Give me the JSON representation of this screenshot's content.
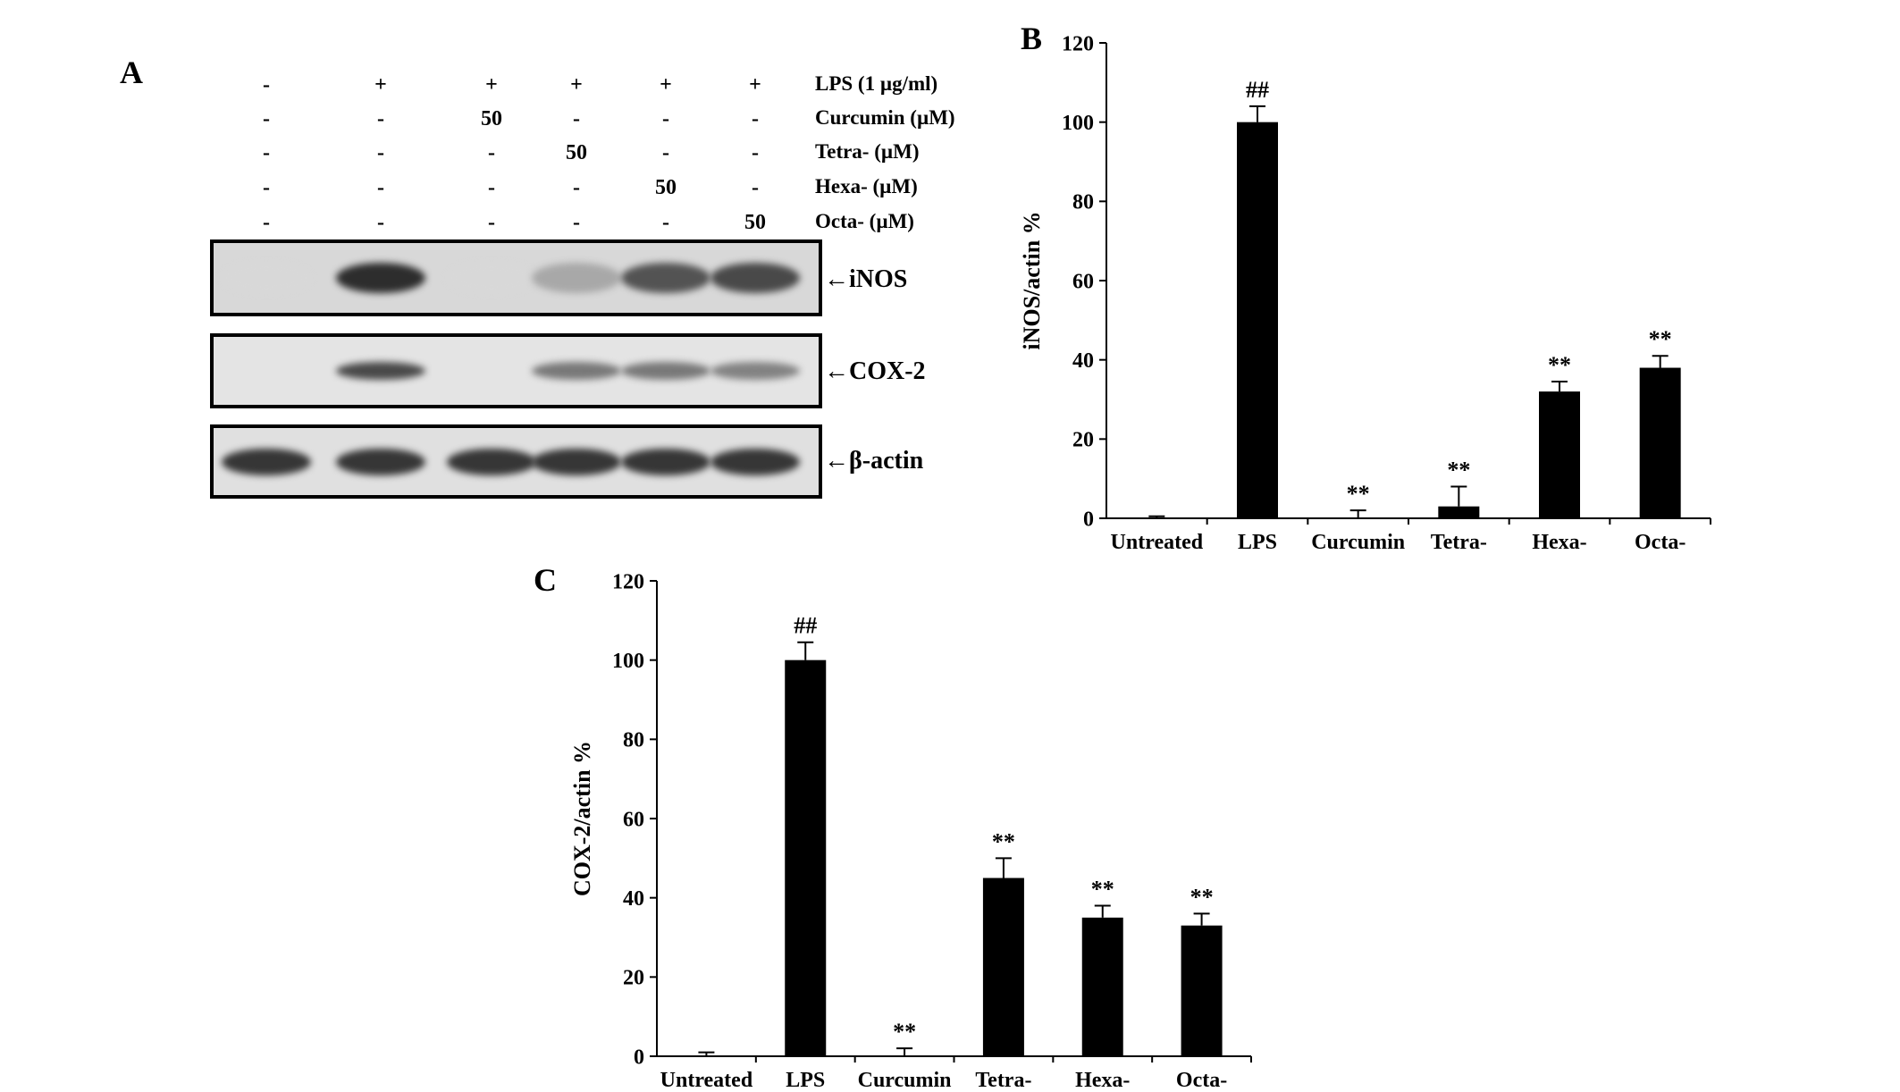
{
  "panel_a": {
    "letter": "A",
    "treatments": [
      {
        "label": "LPS (1 µg/ml)",
        "values": [
          "-",
          "+",
          "+",
          "+",
          "+",
          "+"
        ]
      },
      {
        "label": "Curcumin (µM)",
        "values": [
          "-",
          "-",
          "50",
          "-",
          "-",
          "-"
        ]
      },
      {
        "label": "Tetra- (µM)",
        "values": [
          "-",
          "-",
          "-",
          "50",
          "-",
          "-"
        ]
      },
      {
        "label": "Hexa- (µM)",
        "values": [
          "-",
          "-",
          "-",
          "-",
          "50",
          "-"
        ]
      },
      {
        "label": "Octa- (µM)",
        "values": [
          "-",
          "-",
          "-",
          "-",
          "-",
          "50"
        ]
      }
    ],
    "blots": [
      {
        "label": "iNOS",
        "intensity": [
          0.05,
          0.95,
          0.05,
          0.3,
          0.75,
          0.8
        ]
      },
      {
        "label": "COX-2",
        "intensity": [
          0.0,
          0.8,
          0.0,
          0.55,
          0.55,
          0.5
        ]
      },
      {
        "label": "β-actin",
        "intensity": [
          0.9,
          0.9,
          0.9,
          0.9,
          0.9,
          0.9
        ]
      }
    ],
    "arrow": "←"
  },
  "chart_data": [
    {
      "panel": "B",
      "type": "bar",
      "categories": [
        "Untreated",
        "LPS",
        "Curcumin",
        "Tetra-",
        "Hexa-",
        "Octa-"
      ],
      "values": [
        0,
        100,
        0,
        3,
        32,
        38
      ],
      "errors": [
        0.5,
        4,
        2,
        5,
        2.5,
        3
      ],
      "annotations": [
        "",
        "##",
        "**",
        "**",
        "**",
        "**"
      ],
      "ylabel": "iNOS/actin %",
      "ylim": [
        0,
        120
      ],
      "yticks": [
        "0",
        "20",
        "40",
        "60",
        "80",
        "100",
        "120"
      ],
      "bar_color": "#000000"
    },
    {
      "panel": "C",
      "type": "bar",
      "categories": [
        "Untreated",
        "LPS",
        "Curcumin",
        "Tetra-",
        "Hexa-",
        "Octa-"
      ],
      "values": [
        0,
        100,
        0,
        45,
        35,
        33
      ],
      "errors": [
        1,
        4.5,
        2,
        5,
        3,
        3
      ],
      "annotations": [
        "",
        "##",
        "**",
        "**",
        "**",
        "**"
      ],
      "ylabel": "COX-2/actin %",
      "ylim": [
        0,
        120
      ],
      "yticks": [
        "0",
        "20",
        "40",
        "60",
        "80",
        "100",
        "120"
      ],
      "bar_color": "#000000"
    }
  ]
}
